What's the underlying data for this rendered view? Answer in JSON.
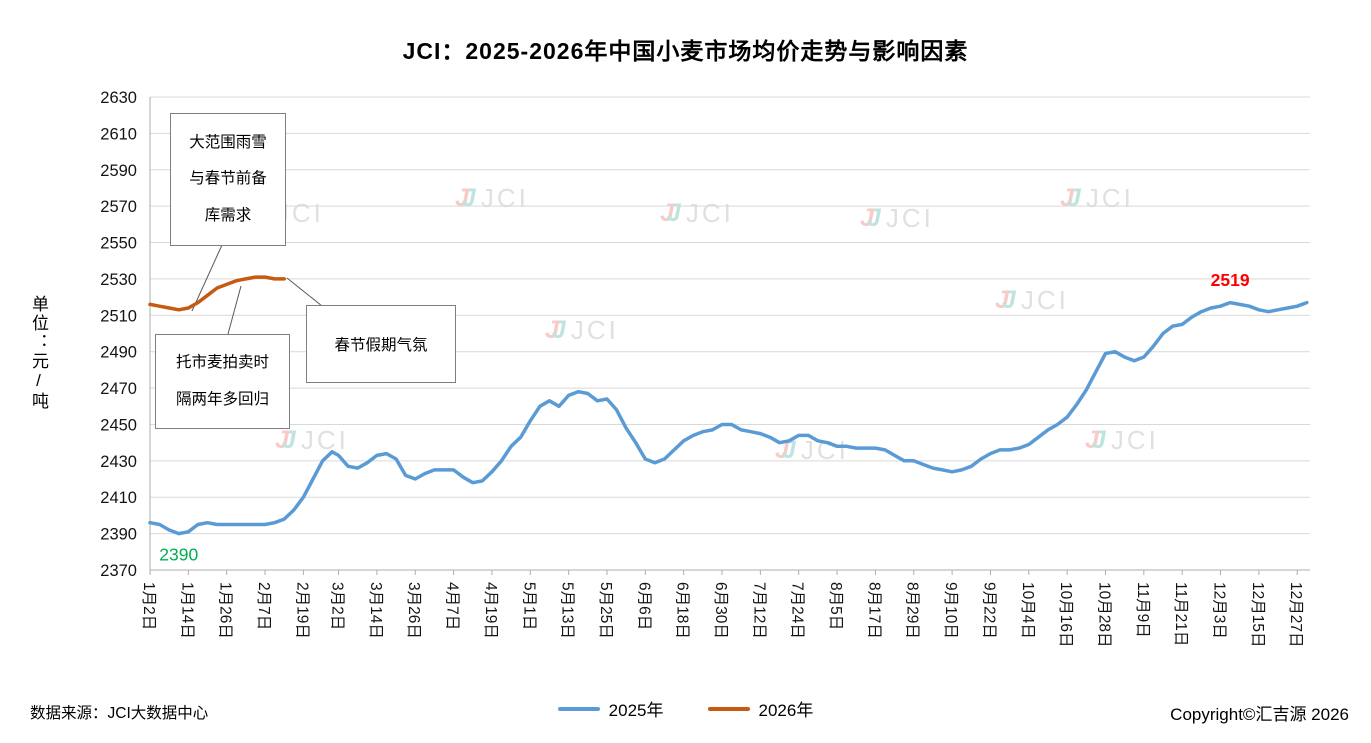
{
  "chart_data": {
    "type": "line",
    "title": "JCI：2025-2026年中国小麦市场均价走势与影响因素",
    "ylabel": "单位：元/吨",
    "ylim": [
      2370,
      2630
    ],
    "ytick_step": 20,
    "grid": "horizontal",
    "legend_position": "bottom",
    "x_domain": [
      2,
      365
    ],
    "x_tick_days": [
      2,
      14,
      26,
      38,
      50,
      61,
      73,
      85,
      97,
      109,
      121,
      133,
      145,
      157,
      169,
      181,
      193,
      205,
      217,
      229,
      241,
      253,
      265,
      277,
      289,
      301,
      313,
      325,
      337,
      349,
      361
    ],
    "x_tick_labels": [
      "1月2日",
      "1月14日",
      "1月26日",
      "2月7日",
      "2月19日",
      "3月2日",
      "3月14日",
      "3月26日",
      "4月7日",
      "4月19日",
      "5月1日",
      "5月13日",
      "5月25日",
      "6月6日",
      "6月18日",
      "6月30日",
      "7月12日",
      "7月24日",
      "8月5日",
      "8月17日",
      "8月29日",
      "9月10日",
      "9月22日",
      "10月4日",
      "10月16日",
      "10月28日",
      "11月9日",
      "11月21日",
      "12月3日",
      "12月15日",
      "12月27日"
    ],
    "series": [
      {
        "name": "2025年",
        "color": "#5B9BD5",
        "points": [
          [
            2,
            2396
          ],
          [
            5,
            2395
          ],
          [
            8,
            2392
          ],
          [
            11,
            2390
          ],
          [
            14,
            2391
          ],
          [
            17,
            2395
          ],
          [
            20,
            2396
          ],
          [
            23,
            2395
          ],
          [
            26,
            2395
          ],
          [
            29,
            2395
          ],
          [
            32,
            2395
          ],
          [
            35,
            2395
          ],
          [
            38,
            2395
          ],
          [
            41,
            2396
          ],
          [
            44,
            2398
          ],
          [
            47,
            2403
          ],
          [
            50,
            2410
          ],
          [
            53,
            2420
          ],
          [
            56,
            2430
          ],
          [
            59,
            2435
          ],
          [
            61,
            2433
          ],
          [
            64,
            2427
          ],
          [
            67,
            2426
          ],
          [
            70,
            2429
          ],
          [
            73,
            2433
          ],
          [
            76,
            2434
          ],
          [
            79,
            2431
          ],
          [
            82,
            2422
          ],
          [
            85,
            2420
          ],
          [
            88,
            2423
          ],
          [
            91,
            2425
          ],
          [
            94,
            2425
          ],
          [
            97,
            2425
          ],
          [
            100,
            2421
          ],
          [
            103,
            2418
          ],
          [
            106,
            2419
          ],
          [
            109,
            2424
          ],
          [
            112,
            2430
          ],
          [
            115,
            2438
          ],
          [
            118,
            2443
          ],
          [
            121,
            2452
          ],
          [
            124,
            2460
          ],
          [
            127,
            2463
          ],
          [
            130,
            2460
          ],
          [
            133,
            2466
          ],
          [
            136,
            2468
          ],
          [
            139,
            2467
          ],
          [
            142,
            2463
          ],
          [
            145,
            2464
          ],
          [
            148,
            2458
          ],
          [
            151,
            2448
          ],
          [
            154,
            2440
          ],
          [
            157,
            2431
          ],
          [
            160,
            2429
          ],
          [
            163,
            2431
          ],
          [
            166,
            2436
          ],
          [
            169,
            2441
          ],
          [
            172,
            2444
          ],
          [
            175,
            2446
          ],
          [
            178,
            2447
          ],
          [
            181,
            2450
          ],
          [
            184,
            2450
          ],
          [
            187,
            2447
          ],
          [
            190,
            2446
          ],
          [
            193,
            2445
          ],
          [
            196,
            2443
          ],
          [
            199,
            2440
          ],
          [
            202,
            2441
          ],
          [
            205,
            2444
          ],
          [
            208,
            2444
          ],
          [
            211,
            2441
          ],
          [
            214,
            2440
          ],
          [
            217,
            2438
          ],
          [
            220,
            2438
          ],
          [
            223,
            2437
          ],
          [
            226,
            2437
          ],
          [
            229,
            2437
          ],
          [
            232,
            2436
          ],
          [
            235,
            2433
          ],
          [
            238,
            2430
          ],
          [
            241,
            2430
          ],
          [
            244,
            2428
          ],
          [
            247,
            2426
          ],
          [
            250,
            2425
          ],
          [
            253,
            2424
          ],
          [
            256,
            2425
          ],
          [
            259,
            2427
          ],
          [
            262,
            2431
          ],
          [
            265,
            2434
          ],
          [
            268,
            2436
          ],
          [
            271,
            2436
          ],
          [
            274,
            2437
          ],
          [
            277,
            2439
          ],
          [
            280,
            2443
          ],
          [
            283,
            2447
          ],
          [
            286,
            2450
          ],
          [
            289,
            2454
          ],
          [
            292,
            2461
          ],
          [
            295,
            2469
          ],
          [
            298,
            2479
          ],
          [
            301,
            2489
          ],
          [
            304,
            2490
          ],
          [
            307,
            2487
          ],
          [
            310,
            2485
          ],
          [
            313,
            2487
          ],
          [
            316,
            2493
          ],
          [
            319,
            2500
          ],
          [
            322,
            2504
          ],
          [
            325,
            2505
          ],
          [
            328,
            2509
          ],
          [
            331,
            2512
          ],
          [
            334,
            2514
          ],
          [
            337,
            2515
          ],
          [
            340,
            2517
          ],
          [
            343,
            2516
          ],
          [
            346,
            2515
          ],
          [
            349,
            2513
          ],
          [
            352,
            2512
          ],
          [
            355,
            2513
          ],
          [
            358,
            2514
          ],
          [
            361,
            2515
          ],
          [
            364,
            2517
          ]
        ]
      },
      {
        "name": "2026年",
        "color": "#C55A11",
        "points": [
          [
            2,
            2516
          ],
          [
            5,
            2515
          ],
          [
            8,
            2514
          ],
          [
            11,
            2513
          ],
          [
            14,
            2514
          ],
          [
            17,
            2517
          ],
          [
            20,
            2521
          ],
          [
            23,
            2525
          ],
          [
            26,
            2527
          ],
          [
            29,
            2529
          ],
          [
            32,
            2530
          ],
          [
            35,
            2531
          ],
          [
            38,
            2531
          ],
          [
            41,
            2530
          ],
          [
            44,
            2530
          ]
        ]
      }
    ],
    "point_labels": [
      {
        "text": "2390",
        "color": "#00B050",
        "day": 11,
        "value": 2390,
        "placement": "below",
        "bold": false
      },
      {
        "text": "2519",
        "color": "#FF0000",
        "day": 340,
        "value": 2519,
        "placement": "above",
        "bold": true
      }
    ]
  },
  "annotations": [
    {
      "lines": [
        "大范围雨雪",
        "与春节前备",
        "库需求"
      ]
    },
    {
      "lines": [
        "托市麦拍卖时",
        "隔两年多回归"
      ]
    },
    {
      "lines": [
        "春节假期气氛"
      ]
    }
  ],
  "watermark": {
    "text": "JCI"
  },
  "footer": {
    "source": "数据来源：JCI大数据中心",
    "copyright": "Copyright©汇吉源 2026"
  }
}
